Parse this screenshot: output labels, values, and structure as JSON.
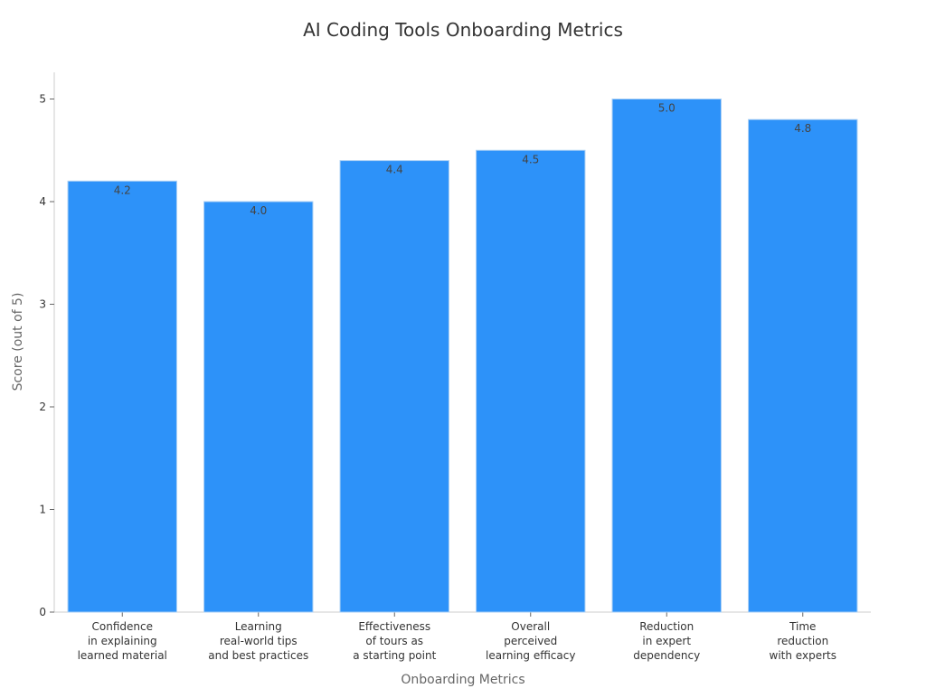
{
  "chart_data": {
    "type": "bar",
    "title": "AI Coding Tools Onboarding Metrics",
    "xlabel": "Onboarding Metrics",
    "ylabel": "Score (out of 5)",
    "ylim": [
      0,
      5.26
    ],
    "yticks": [
      0,
      1,
      2,
      3,
      4,
      5
    ],
    "categories": [
      [
        "Confidence",
        "in explaining",
        "learned material"
      ],
      [
        "Learning",
        "real-world tips",
        "and best practices"
      ],
      [
        "Effectiveness",
        "of tours as",
        "a starting point"
      ],
      [
        "Overall",
        "perceived",
        "learning efficacy"
      ],
      [
        "Reduction",
        "in expert",
        "dependency"
      ],
      [
        "Time",
        "reduction",
        "with experts"
      ]
    ],
    "values": [
      4.2,
      4.0,
      4.4,
      4.5,
      5.0,
      4.8
    ],
    "value_labels": [
      "4.2",
      "4.0",
      "4.4",
      "4.5",
      "5.0",
      "4.8"
    ],
    "grid": false,
    "legend": "none",
    "bar_color": "#2d92f9",
    "bar_edge_color": "#a9cff5",
    "text_color": "#333333",
    "axis_color": "#cccccc"
  }
}
